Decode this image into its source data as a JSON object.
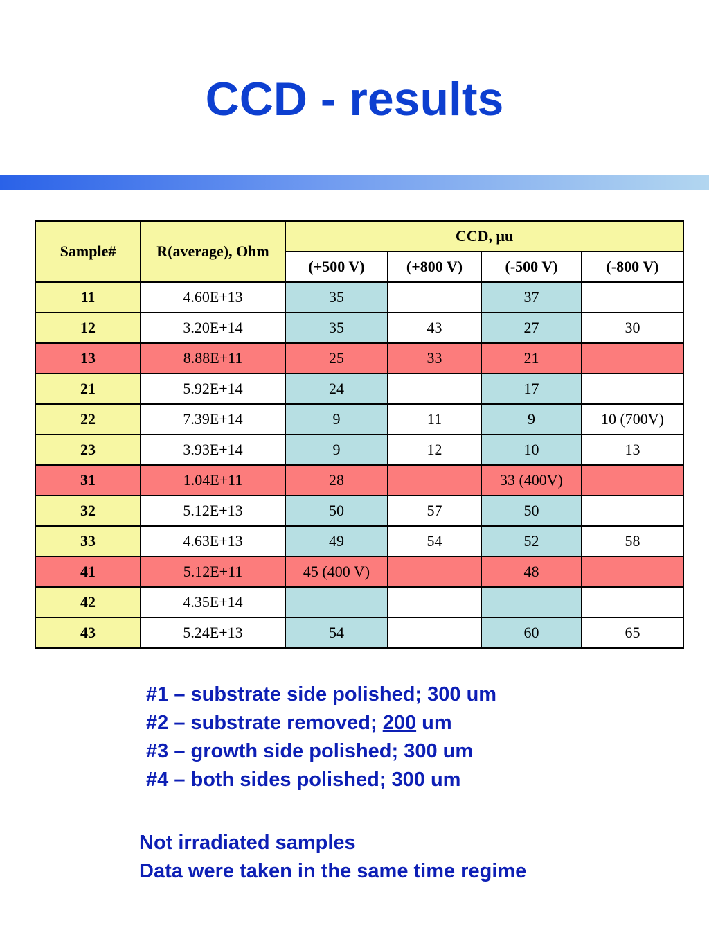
{
  "title": "CCD - results",
  "colors": {
    "title": "#0d3fd0",
    "header_fill": "#f7f7a3",
    "ccd_fill": "#b7dfe3",
    "highlight_row": "#fc7c7c",
    "notes_text": "#0d1fb5"
  },
  "table": {
    "headers": {
      "sample": "Sample#",
      "resistance": "R(average), Ohm",
      "ccd": "CCD, μu",
      "voltages": [
        "(+500 V)",
        "(+800 V)",
        "(-500 V)",
        "(-800 V)"
      ]
    },
    "rows": [
      {
        "sample": "11",
        "r": "4.60E+13",
        "v": [
          "35",
          "",
          "37",
          ""
        ],
        "highlight": false
      },
      {
        "sample": "12",
        "r": "3.20E+14",
        "v": [
          "35",
          "43",
          "27",
          "30"
        ],
        "highlight": false
      },
      {
        "sample": "13",
        "r": "8.88E+11",
        "v": [
          "25",
          "33",
          "21",
          ""
        ],
        "highlight": true
      },
      {
        "sample": "21",
        "r": "5.92E+14",
        "v": [
          "24",
          "",
          "17",
          ""
        ],
        "highlight": false
      },
      {
        "sample": "22",
        "r": "7.39E+14",
        "v": [
          "9",
          "11",
          "9",
          "10 (700V)"
        ],
        "highlight": false
      },
      {
        "sample": "23",
        "r": "3.93E+14",
        "v": [
          "9",
          "12",
          "10",
          "13"
        ],
        "highlight": false
      },
      {
        "sample": "31",
        "r": "1.04E+11",
        "v": [
          "28",
          "",
          "33 (400V)",
          ""
        ],
        "highlight": true
      },
      {
        "sample": "32",
        "r": "5.12E+13",
        "v": [
          "50",
          "57",
          "50",
          ""
        ],
        "highlight": false
      },
      {
        "sample": "33",
        "r": "4.63E+13",
        "v": [
          "49",
          "54",
          "52",
          "58"
        ],
        "highlight": false
      },
      {
        "sample": "41",
        "r": "5.12E+11",
        "v": [
          "45 (400 V)",
          "",
          "48",
          ""
        ],
        "highlight": true
      },
      {
        "sample": "42",
        "r": "4.35E+14",
        "v": [
          "",
          "",
          "",
          ""
        ],
        "highlight": false
      },
      {
        "sample": "43",
        "r": "5.24E+13",
        "v": [
          "54",
          "",
          "60",
          "65"
        ],
        "highlight": false
      }
    ]
  },
  "notes": [
    {
      "text": "#1 – substrate side polished; 300 um"
    },
    {
      "pre": "#2 – substrate removed; ",
      "underlined": "200",
      "post": " um"
    },
    {
      "text": "#3 – growth side polished; 300 um"
    },
    {
      "text": "#4 – both sides polished; 300 um"
    }
  ],
  "footer": [
    "Not irradiated samples",
    "Data were taken in the same time regime"
  ]
}
